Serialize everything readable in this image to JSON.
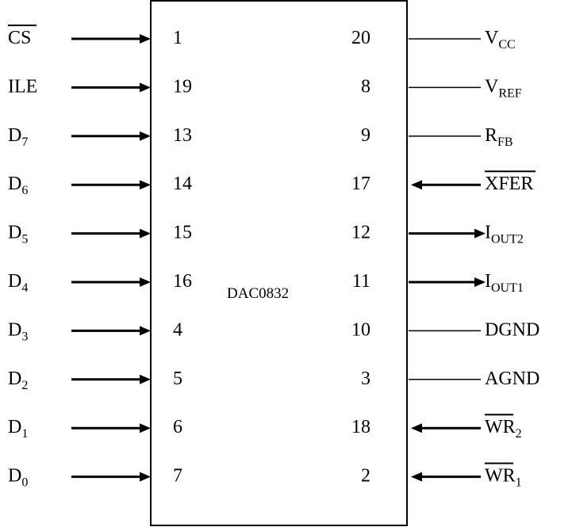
{
  "chip": {
    "name": "DAC0832",
    "left_pins": [
      {
        "signal": "CS",
        "sub": "",
        "overline": true,
        "pin": "1"
      },
      {
        "signal": "ILE",
        "sub": "",
        "overline": false,
        "pin": "19"
      },
      {
        "signal": "D",
        "sub": "7",
        "overline": false,
        "pin": "13"
      },
      {
        "signal": "D",
        "sub": "6",
        "overline": false,
        "pin": "14"
      },
      {
        "signal": "D",
        "sub": "5",
        "overline": false,
        "pin": "15"
      },
      {
        "signal": "D",
        "sub": "4",
        "overline": false,
        "pin": "16"
      },
      {
        "signal": "D",
        "sub": "3",
        "overline": false,
        "pin": "4"
      },
      {
        "signal": "D",
        "sub": "2",
        "overline": false,
        "pin": "5"
      },
      {
        "signal": "D",
        "sub": "1",
        "overline": false,
        "pin": "6"
      },
      {
        "signal": "D",
        "sub": "0",
        "overline": false,
        "pin": "7"
      }
    ],
    "right_pins": [
      {
        "pin": "20",
        "signal": "V",
        "sub": "CC",
        "overline": false,
        "arrow": "none"
      },
      {
        "pin": "8",
        "signal": "V",
        "sub": "REF",
        "overline": false,
        "arrow": "none"
      },
      {
        "pin": "9",
        "signal": "R",
        "sub": "FB",
        "overline": false,
        "arrow": "none"
      },
      {
        "pin": "17",
        "signal": "XFER",
        "sub": "",
        "overline": true,
        "arrow": "in"
      },
      {
        "pin": "12",
        "signal": "I",
        "sub": "OUT2",
        "overline": false,
        "arrow": "out"
      },
      {
        "pin": "11",
        "signal": "I",
        "sub": "OUT1",
        "overline": false,
        "arrow": "out"
      },
      {
        "pin": "10",
        "signal": "DGND",
        "sub": "",
        "overline": false,
        "arrow": "none"
      },
      {
        "pin": "3",
        "signal": "AGND",
        "sub": "",
        "overline": false,
        "arrow": "none"
      },
      {
        "pin": "18",
        "signal": "WR",
        "sub": "2",
        "overline": true,
        "arrow": "in"
      },
      {
        "pin": "2",
        "signal": "WR",
        "sub": "1",
        "overline": true,
        "arrow": "in"
      }
    ]
  }
}
